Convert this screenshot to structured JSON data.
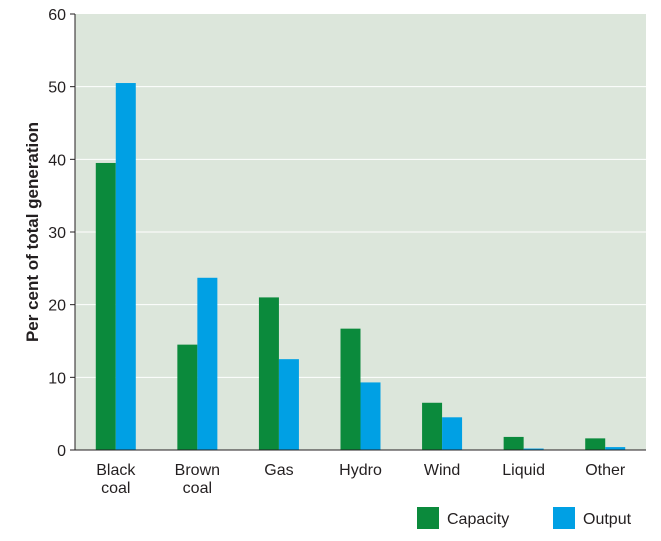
{
  "chart_data": {
    "type": "bar",
    "title": "",
    "xlabel": "",
    "ylabel": "Per cent of total generation",
    "ylim": [
      0,
      60
    ],
    "yticks": [
      0,
      10,
      20,
      30,
      40,
      50,
      60
    ],
    "grid": true,
    "legend_position": "bottom-right",
    "categories": [
      [
        "Black",
        "coal"
      ],
      [
        "Brown",
        "coal"
      ],
      [
        "Gas"
      ],
      [
        "Hydro"
      ],
      [
        "Wind"
      ],
      [
        "Liquid"
      ],
      [
        "Other"
      ]
    ],
    "series": [
      {
        "name": "Capacity",
        "color": "#0b8a3c",
        "values": [
          39.5,
          14.5,
          21.0,
          16.7,
          6.5,
          1.8,
          1.6
        ]
      },
      {
        "name": "Output",
        "color": "#00a0e4",
        "values": [
          50.5,
          23.7,
          12.5,
          9.3,
          4.5,
          0.2,
          0.4
        ]
      }
    ],
    "background_color": "#dce6db",
    "gridline_color": "#ffffff"
  }
}
